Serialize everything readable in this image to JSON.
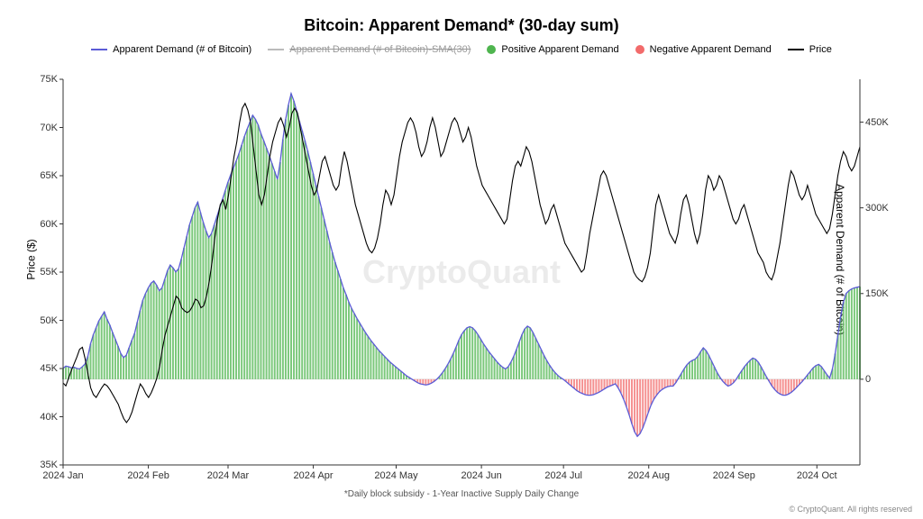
{
  "title": "Bitcoin: Apparent Demand* (30-day sum)",
  "title_fontsize": 18,
  "legend": {
    "items": [
      {
        "label": "Apparent Demand (# of Bitcoin)",
        "type": "line",
        "color": "#5b5bd6"
      },
      {
        "label": "Apparent Demand (# of Bitcoin)-SMA(30)",
        "type": "line",
        "color": "#bbbbbb",
        "strikethrough": true
      },
      {
        "label": "Positive Apparent Demand",
        "type": "dot",
        "color": "#4fb54f"
      },
      {
        "label": "Negative Apparent Demand",
        "type": "dot",
        "color": "#f26b6b"
      },
      {
        "label": "Price",
        "type": "line",
        "color": "#000000"
      }
    ]
  },
  "watermark": "CryptoQuant",
  "x_subtitle": "*Daily block subsidy - 1-Year Inactive Supply Daily Change",
  "copyright": "© CryptoQuant. All rights reserved",
  "left_axis": {
    "label": "Price ($)",
    "min": 35000,
    "max": 75000,
    "ticks": [
      35000,
      40000,
      45000,
      50000,
      55000,
      60000,
      65000,
      70000,
      75000
    ],
    "tick_labels": [
      "35K",
      "40K",
      "45K",
      "50K",
      "55K",
      "60K",
      "65K",
      "70K",
      "75K"
    ],
    "fontsize": 11
  },
  "right_axis": {
    "label": "Apparent Demand (# of Bitcoin)",
    "min": -150000,
    "max": 525000,
    "ticks": [
      0,
      150000,
      300000,
      450000
    ],
    "tick_labels": [
      "0",
      "150K",
      "300K",
      "450K"
    ],
    "zero_line_color": "#888888",
    "fontsize": 11
  },
  "x_axis": {
    "tick_labels": [
      "2024 Jan",
      "2024 Feb",
      "2024 Mar",
      "2024 Apr",
      "2024 May",
      "2024 Jun",
      "2024 Jul",
      "2024 Aug",
      "2024 Sep",
      "2024 Oct"
    ],
    "tick_positions": [
      0,
      0.107,
      0.207,
      0.314,
      0.418,
      0.525,
      0.628,
      0.735,
      0.842,
      0.946
    ],
    "fontsize": 11
  },
  "grid": {
    "color": "#f0f0f0",
    "show": false
  },
  "colors": {
    "price_line": "#000000",
    "demand_line": "#5b5bd6",
    "positive_bar": "#4fb54f",
    "negative_bar": "#f26b6b",
    "background": "#ffffff"
  },
  "line_width": {
    "price": 1.1,
    "demand": 1.3
  },
  "demand_values": [
    19,
    23,
    22,
    20,
    21,
    19,
    18,
    22,
    27,
    40,
    62,
    78,
    90,
    102,
    110,
    118,
    105,
    95,
    82,
    70,
    58,
    45,
    38,
    42,
    55,
    68,
    80,
    100,
    120,
    138,
    150,
    160,
    168,
    172,
    165,
    155,
    160,
    175,
    190,
    200,
    195,
    188,
    193,
    210,
    230,
    250,
    270,
    285,
    300,
    310,
    292,
    275,
    260,
    248,
    255,
    270,
    285,
    300,
    315,
    330,
    345,
    358,
    370,
    382,
    395,
    410,
    425,
    438,
    450,
    462,
    455,
    445,
    430,
    418,
    405,
    392,
    378,
    364,
    350,
    380,
    420,
    455,
    480,
    500,
    487,
    470,
    452,
    435,
    418,
    400,
    380,
    360,
    340,
    320,
    300,
    280,
    260,
    240,
    222,
    205,
    190,
    175,
    160,
    148,
    135,
    124,
    115,
    106,
    98,
    90,
    82,
    75,
    68,
    62,
    56,
    50,
    45,
    40,
    35,
    30,
    26,
    22,
    18,
    14,
    10,
    6,
    3,
    0,
    -3,
    -6,
    -8,
    -9,
    -10,
    -9,
    -7,
    -4,
    0,
    5,
    11,
    18,
    26,
    35,
    45,
    56,
    68,
    78,
    85,
    90,
    92,
    90,
    85,
    78,
    70,
    62,
    55,
    48,
    42,
    36,
    30,
    25,
    21,
    18,
    22,
    30,
    40,
    52,
    65,
    78,
    88,
    93,
    90,
    82,
    72,
    62,
    52,
    42,
    33,
    25,
    18,
    12,
    7,
    3,
    0,
    -4,
    -8,
    -12,
    -16,
    -20,
    -23,
    -25,
    -27,
    -28,
    -28,
    -27,
    -25,
    -23,
    -20,
    -17,
    -14,
    -12,
    -10,
    -8,
    -15,
    -24,
    -35,
    -48,
    -62,
    -78,
    -92,
    -100,
    -95,
    -85,
    -72,
    -58,
    -45,
    -35,
    -28,
    -22,
    -18,
    -15,
    -13,
    -12,
    -12,
    -6,
    2,
    10,
    18,
    25,
    30,
    33,
    35,
    40,
    48,
    55,
    50,
    42,
    32,
    22,
    12,
    4,
    -3,
    -8,
    -12,
    -10,
    -6,
    0,
    8,
    15,
    22,
    28,
    33,
    37,
    35,
    30,
    22,
    13,
    4,
    -4,
    -12,
    -18,
    -23,
    -26,
    -28,
    -28,
    -26,
    -23,
    -19,
    -14,
    -9,
    -4,
    2,
    8,
    14,
    20,
    24,
    26,
    22,
    15,
    8,
    2,
    18,
    45,
    78,
    110,
    135,
    150,
    155,
    158,
    160,
    161,
    162
  ],
  "price_values": [
    43.5,
    43.2,
    44.0,
    44.8,
    45.5,
    46.2,
    47.0,
    47.2,
    46.0,
    44.5,
    43.0,
    42.3,
    42.0,
    42.5,
    43.0,
    43.4,
    43.2,
    42.8,
    42.3,
    41.8,
    41.3,
    40.5,
    39.8,
    39.4,
    39.8,
    40.5,
    41.5,
    42.5,
    43.4,
    43.0,
    42.4,
    42.0,
    42.5,
    43.2,
    44.0,
    45.2,
    47.0,
    48.5,
    49.5,
    50.5,
    51.5,
    52.5,
    52.2,
    51.3,
    51.0,
    50.8,
    51.0,
    51.5,
    52.2,
    52.0,
    51.3,
    51.5,
    52.5,
    54.0,
    56.0,
    58.5,
    60.5,
    62.0,
    62.5,
    61.5,
    63.0,
    65.0,
    67.0,
    68.5,
    70.5,
    72.0,
    72.5,
    71.8,
    70.5,
    68.0,
    65.5,
    63.0,
    62.0,
    63.0,
    65.0,
    67.0,
    68.5,
    69.5,
    70.5,
    71.0,
    70.2,
    69.0,
    70.0,
    71.5,
    72.0,
    71.5,
    70.0,
    68.5,
    67.0,
    65.5,
    64.0,
    63.0,
    63.5,
    65.0,
    66.5,
    67.0,
    66.0,
    65.0,
    64.0,
    63.5,
    64.0,
    66.0,
    67.5,
    66.5,
    65.0,
    63.5,
    62.0,
    61.0,
    60.0,
    59.0,
    58.0,
    57.3,
    57.0,
    57.5,
    58.5,
    60.0,
    62.0,
    63.5,
    63.0,
    62.0,
    63.0,
    65.0,
    67.0,
    68.5,
    69.5,
    70.5,
    71.0,
    70.5,
    69.5,
    68.0,
    67.0,
    67.5,
    68.5,
    70.0,
    71.0,
    70.0,
    68.5,
    67.0,
    67.5,
    68.5,
    69.5,
    70.5,
    71.0,
    70.5,
    69.5,
    68.5,
    69.0,
    70.0,
    69.0,
    67.5,
    66.0,
    65.0,
    64.0,
    63.5,
    63.0,
    62.5,
    62.0,
    61.5,
    61.0,
    60.5,
    60.0,
    60.5,
    62.5,
    64.5,
    66.0,
    66.5,
    66.0,
    67.0,
    68.0,
    67.5,
    66.5,
    65.0,
    63.5,
    62.0,
    61.0,
    60.0,
    60.5,
    61.5,
    62.0,
    61.0,
    60.0,
    59.0,
    58.0,
    57.5,
    57.0,
    56.5,
    56.0,
    55.5,
    55.0,
    55.3,
    57.0,
    59.0,
    60.5,
    62.0,
    63.5,
    65.0,
    65.5,
    65.0,
    64.0,
    63.0,
    62.0,
    61.0,
    60.0,
    59.0,
    58.0,
    57.0,
    56.0,
    55.0,
    54.5,
    54.2,
    54.0,
    54.5,
    55.5,
    57.0,
    59.5,
    62.0,
    63.0,
    62.0,
    61.0,
    60.0,
    59.0,
    58.5,
    58.0,
    59.0,
    61.0,
    62.5,
    63.0,
    62.0,
    60.5,
    59.0,
    58.0,
    59.0,
    61.0,
    63.5,
    65.0,
    64.5,
    63.5,
    64.0,
    65.0,
    64.5,
    63.5,
    62.5,
    61.5,
    60.5,
    60.0,
    60.5,
    61.5,
    62.0,
    61.0,
    60.0,
    59.0,
    58.0,
    57.0,
    56.5,
    56.0,
    55.0,
    54.5,
    54.2,
    55.0,
    56.5,
    58.0,
    60.0,
    62.0,
    64.0,
    65.5,
    65.0,
    64.0,
    63.0,
    62.5,
    63.0,
    64.0,
    63.0,
    62.0,
    61.0,
    60.5,
    60.0,
    59.5,
    59.0,
    59.5,
    61.0,
    63.0,
    65.0,
    66.5,
    67.5,
    67.0,
    66.0,
    65.5,
    66.0,
    67.0,
    68.0
  ]
}
